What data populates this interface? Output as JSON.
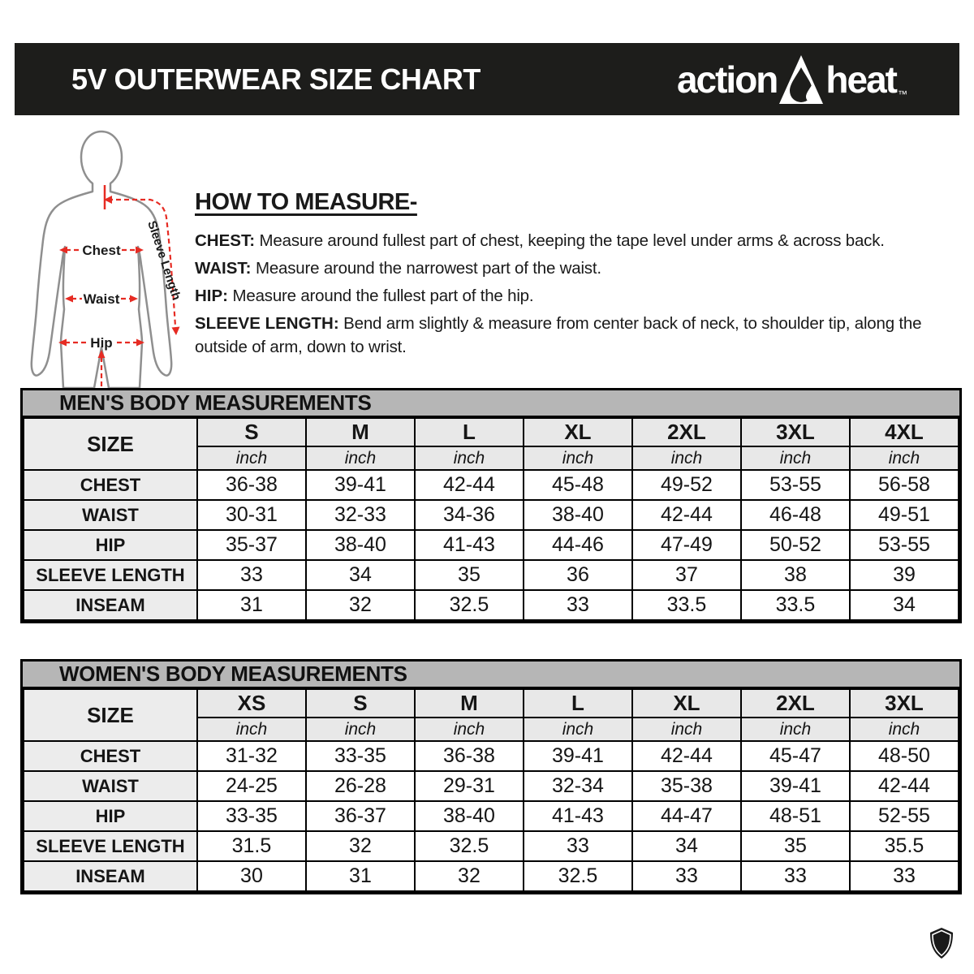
{
  "header": {
    "title": "5V OUTERWEAR SIZE CHART",
    "brand_left": "action",
    "brand_right": "heat",
    "brand_tm": "™"
  },
  "how_to_measure": {
    "heading": "HOW TO MEASURE-",
    "items": [
      {
        "label": "CHEST:",
        "text": " Measure around fullest part of chest, keeping the tape level under arms & across back."
      },
      {
        "label": "WAIST:",
        "text": " Measure around the narrowest part of the waist."
      },
      {
        "label": "HIP:",
        "text": " Measure around the fullest part of the hip."
      },
      {
        "label": "SLEEVE LENGTH:",
        "text": " Bend arm slightly & measure from center back of neck, to shoulder tip, along the outside of arm, down to wrist."
      }
    ]
  },
  "figure_labels": {
    "chest": "Chest",
    "waist": "Waist",
    "hip": "Hip",
    "sleeve_length": "Sleeve Length"
  },
  "colors": {
    "header_bg": "#1d1d1b",
    "table_title_bg": "#b6b6b6",
    "table_header_bg": "#e8e8e8",
    "row_label_bg": "#ececec",
    "arrow_red": "#e62b23",
    "silhouette_gray": "#8f8f8f"
  },
  "tables": [
    {
      "title": "MEN'S BODY MEASUREMENTS",
      "size_label": "SIZE",
      "unit": "inch",
      "sizes": [
        "S",
        "M",
        "L",
        "XL",
        "2XL",
        "3XL",
        "4XL"
      ],
      "rows": [
        {
          "label": "CHEST",
          "values": [
            "36-38",
            "39-41",
            "42-44",
            "45-48",
            "49-52",
            "53-55",
            "56-58"
          ]
        },
        {
          "label": "WAIST",
          "values": [
            "30-31",
            "32-33",
            "34-36",
            "38-40",
            "42-44",
            "46-48",
            "49-51"
          ]
        },
        {
          "label": "HIP",
          "values": [
            "35-37",
            "38-40",
            "41-43",
            "44-46",
            "47-49",
            "50-52",
            "53-55"
          ]
        },
        {
          "label": "SLEEVE LENGTH",
          "values": [
            "33",
            "34",
            "35",
            "36",
            "37",
            "38",
            "39"
          ]
        },
        {
          "label": "INSEAM",
          "values": [
            "31",
            "32",
            "32.5",
            "33",
            "33.5",
            "33.5",
            "34"
          ]
        }
      ]
    },
    {
      "title": "WOMEN'S BODY MEASUREMENTS",
      "size_label": "SIZE",
      "unit": "inch",
      "sizes": [
        "XS",
        "S",
        "M",
        "L",
        "XL",
        "2XL",
        "3XL"
      ],
      "rows": [
        {
          "label": "CHEST",
          "values": [
            "31-32",
            "33-35",
            "36-38",
            "39-41",
            "42-44",
            "45-47",
            "48-50"
          ]
        },
        {
          "label": "WAIST",
          "values": [
            "24-25",
            "26-28",
            "29-31",
            "32-34",
            "35-38",
            "39-41",
            "42-44"
          ]
        },
        {
          "label": "HIP",
          "values": [
            "33-35",
            "36-37",
            "38-40",
            "41-43",
            "44-47",
            "48-51",
            "52-55"
          ]
        },
        {
          "label": "SLEEVE LENGTH",
          "values": [
            "31.5",
            "32",
            "32.5",
            "33",
            "34",
            "35",
            "35.5"
          ]
        },
        {
          "label": "INSEAM",
          "values": [
            "30",
            "31",
            "32",
            "32.5",
            "33",
            "33",
            "33"
          ]
        }
      ]
    }
  ]
}
